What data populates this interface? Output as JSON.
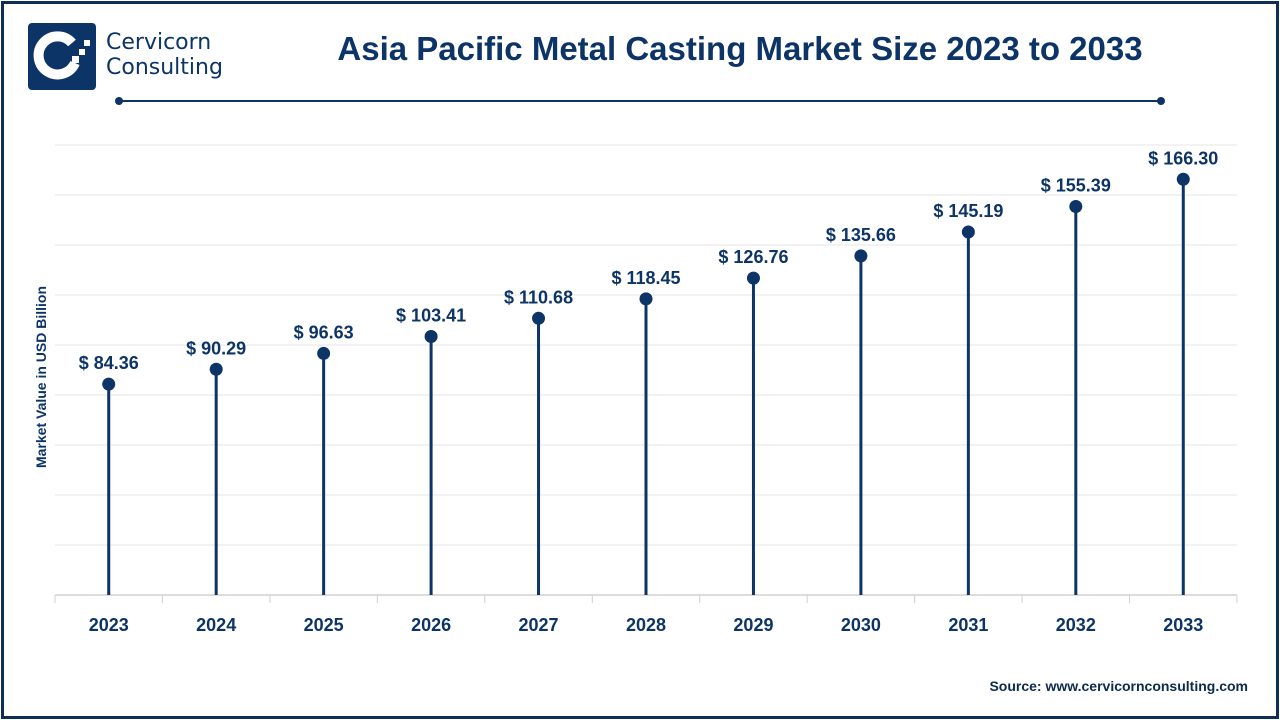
{
  "header": {
    "brand_line1": "Cervicorn",
    "brand_line2": "Consulting",
    "title": "Asia Pacific Metal Casting Market Size 2023 to 2033"
  },
  "source": "Source: www.cervicornconsulting.com",
  "colors": {
    "primary": "#0d3466",
    "grid": "#e3e3e3"
  },
  "chart_data": {
    "type": "line",
    "subtype": "lollipop",
    "title": "Asia Pacific Metal Casting Market Size 2023 to 2033",
    "xlabel": "",
    "ylabel": "Market Value in USD Billion",
    "categories": [
      "2023",
      "2024",
      "2025",
      "2026",
      "2027",
      "2028",
      "2029",
      "2030",
      "2031",
      "2032",
      "2033"
    ],
    "values": [
      84.36,
      90.29,
      96.63,
      103.41,
      110.68,
      118.45,
      126.76,
      135.66,
      145.19,
      155.39,
      166.3
    ],
    "labels": [
      "$ 84.36",
      "$ 90.29",
      "$ 96.63",
      "$ 103.41",
      "$ 110.68",
      "$ 118.45",
      "$ 126.76",
      "$ 135.66",
      "$ 145.19",
      "$ 155.39",
      "$ 166.30"
    ],
    "ylim": [
      0,
      180
    ],
    "ytick_step": 20,
    "grid": true,
    "legend": "none"
  }
}
